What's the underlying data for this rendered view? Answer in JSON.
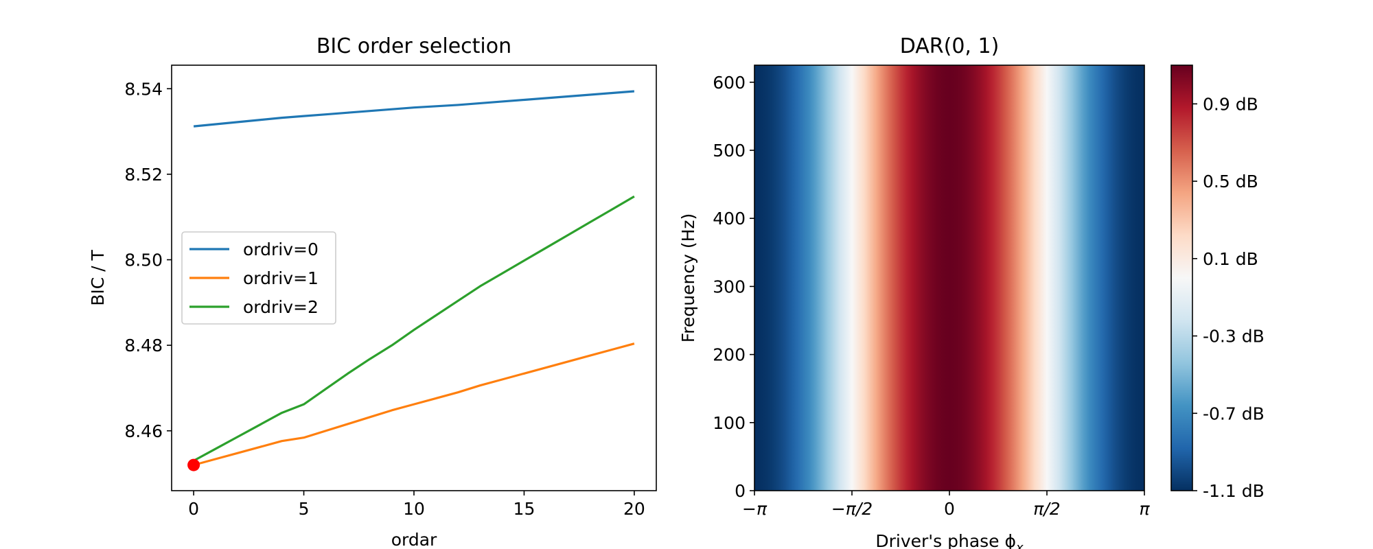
{
  "chart_data": [
    {
      "type": "line",
      "title": "BIC order selection",
      "xlabel": "ordar",
      "ylabel": "BIC / T",
      "xlim": [
        -1,
        21
      ],
      "ylim": [
        8.446,
        8.5455
      ],
      "grid": false,
      "legend_placement": "center-left",
      "x": [
        0,
        1,
        2,
        3,
        4,
        5,
        6,
        7,
        8,
        9,
        10,
        11,
        12,
        13,
        14,
        15,
        16,
        17,
        18,
        19,
        20
      ],
      "xticks": [
        0,
        5,
        10,
        15,
        20
      ],
      "xtick_labels": [
        "0",
        "5",
        "10",
        "15",
        "20"
      ],
      "yticks": [
        8.46,
        8.48,
        8.5,
        8.52,
        8.54
      ],
      "ytick_labels": [
        "8.46",
        "8.48",
        "8.50",
        "8.52",
        "8.54"
      ],
      "series": [
        {
          "name": "ordriv=0",
          "color": "#1f77b4",
          "values": [
            8.5312,
            8.5317,
            8.5322,
            8.5327,
            8.5332,
            8.5336,
            8.534,
            8.5344,
            8.5348,
            8.5352,
            8.5356,
            8.5359,
            8.5362,
            8.5366,
            8.537,
            8.5374,
            8.5378,
            8.5382,
            8.5386,
            8.539,
            8.5394
          ]
        },
        {
          "name": "ordriv=1",
          "color": "#ff7f0e",
          "values": [
            8.452,
            8.4534,
            8.4548,
            8.4562,
            8.4576,
            8.4584,
            8.46,
            8.4616,
            8.4632,
            8.4648,
            8.4662,
            8.4676,
            8.469,
            8.4706,
            8.472,
            8.4734,
            8.4748,
            8.4762,
            8.4776,
            8.479,
            8.4804
          ]
        },
        {
          "name": "ordriv=2",
          "color": "#2ca02c",
          "values": [
            8.453,
            8.4558,
            8.4586,
            8.4614,
            8.4642,
            8.4662,
            8.4698,
            8.4734,
            8.4768,
            8.48,
            8.4836,
            8.487,
            8.4904,
            8.4938,
            8.4968,
            8.4998,
            8.5028,
            8.5058,
            8.5088,
            8.5118,
            8.5148
          ]
        }
      ],
      "selected_point": {
        "x": 0,
        "y": 8.452,
        "color": "#ff0000"
      }
    },
    {
      "type": "heatmap",
      "title": "DAR(0, 1)",
      "xlabel": "Driver's phase ϕ",
      "xlabel_subscript": "x",
      "ylabel": "Frequency (Hz)",
      "xlim": [
        -3.14159,
        3.14159
      ],
      "ylim": [
        0,
        625
      ],
      "xticks": [
        -3.14159,
        -1.5708,
        0,
        1.5708,
        3.14159
      ],
      "xtick_labels": [
        "−π",
        "−π/2",
        "0",
        "π/2",
        "π"
      ],
      "yticks": [
        0,
        100,
        200,
        300,
        400,
        500,
        600
      ],
      "ytick_labels": [
        "0",
        "100",
        "200",
        "300",
        "400",
        "500",
        "600"
      ],
      "colormap": "RdBu_r",
      "colormap_stops": [
        "#053061",
        "#2166ac",
        "#4393c3",
        "#92c5de",
        "#d1e5f0",
        "#f7f7f7",
        "#fddbc7",
        "#f4a582",
        "#d6604d",
        "#b2182b",
        "#67001f"
      ],
      "value_description": "amplitude varies with phase as cos(phase), constant across frequency",
      "vmin": -1.1,
      "vmax": 1.1,
      "colorbar_ticks": [
        0.9,
        0.5,
        0.1,
        -0.3,
        -0.7,
        -1.1
      ],
      "colorbar_labels": [
        "0.9 dB",
        "0.5 dB",
        "0.1 dB",
        "-0.3 dB",
        "-0.7 dB",
        "-1.1 dB"
      ]
    }
  ]
}
